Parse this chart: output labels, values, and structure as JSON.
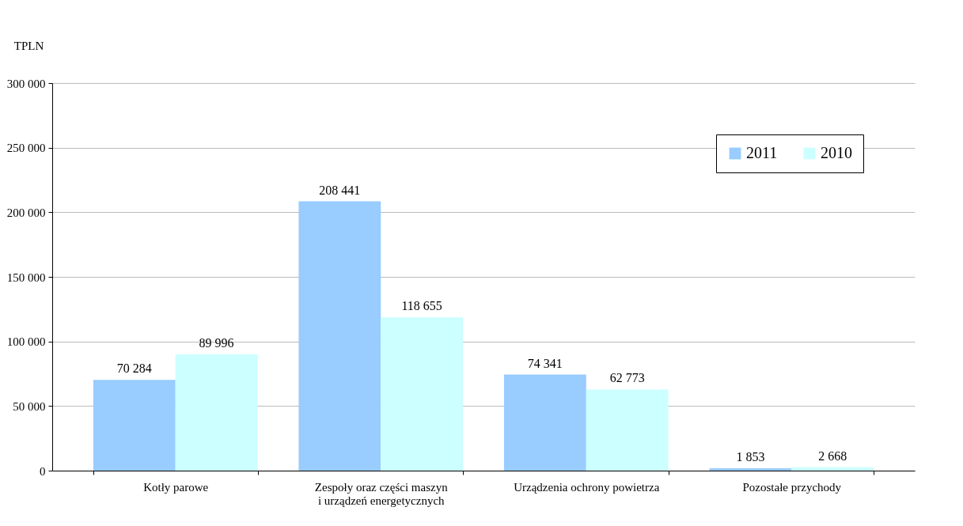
{
  "chart_data": {
    "type": "bar",
    "ylabel": "TPLN",
    "categories": [
      "Kotły parowe",
      "Zespoły oraz części maszyn\ni urządzeń energetycznych",
      "Urządzenia ochrony powietrza",
      "Pozostałe przychody"
    ],
    "series": [
      {
        "name": "2011",
        "color": "#99ccff",
        "values": [
          70284,
          208441,
          74341,
          1853
        ],
        "value_labels": [
          "70 284",
          "208 441",
          "74 341",
          "1 853"
        ]
      },
      {
        "name": "2010",
        "color": "#ccffff",
        "values": [
          89996,
          118655,
          62773,
          2668
        ],
        "value_labels": [
          "89 996",
          "118 655",
          "62 773",
          "2 668"
        ]
      }
    ],
    "ylim": [
      0,
      300000
    ],
    "yticks": [
      {
        "value": 0,
        "label": "0"
      },
      {
        "value": 50000,
        "label": "50 000"
      },
      {
        "value": 100000,
        "label": "100 000"
      },
      {
        "value": 150000,
        "label": "150 000"
      },
      {
        "value": 200000,
        "label": "200 000"
      },
      {
        "value": 250000,
        "label": "250 000"
      },
      {
        "value": 300000,
        "label": "300 000"
      }
    ],
    "grid": "y",
    "legend": "top right"
  }
}
